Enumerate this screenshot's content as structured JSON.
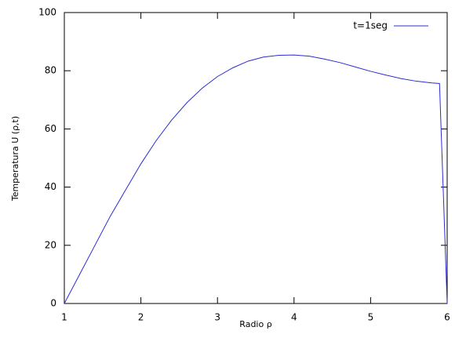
{
  "chart_data": {
    "type": "line",
    "xlabel": "Radio ρ",
    "ylabel": "Temperatura U (ρ,t)",
    "x": [
      1.0,
      1.2,
      1.4,
      1.6,
      1.8,
      2.0,
      2.2,
      2.4,
      2.6,
      2.8,
      3.0,
      3.2,
      3.4,
      3.6,
      3.8,
      4.0,
      4.2,
      4.4,
      4.6,
      4.8,
      5.0,
      5.2,
      5.4,
      5.6,
      5.8,
      5.9,
      6.0
    ],
    "series": [
      {
        "name": "t=1seg",
        "color": "#2b2bd6",
        "values": [
          0,
          10,
          20,
          30,
          39,
          48,
          56,
          63,
          69,
          74,
          78,
          81,
          83.3,
          84.7,
          85.3,
          85.4,
          85,
          84,
          82.8,
          81.3,
          79.8,
          78.5,
          77.3,
          76.4,
          75.8,
          75.6,
          0
        ]
      }
    ],
    "xlim": [
      1,
      6
    ],
    "xticks": [
      1,
      2,
      3,
      4,
      5,
      6
    ],
    "ylim": [
      0,
      100
    ],
    "yticks": [
      0,
      20,
      40,
      60,
      80,
      100
    ],
    "grid": false,
    "legend": "top-right"
  }
}
